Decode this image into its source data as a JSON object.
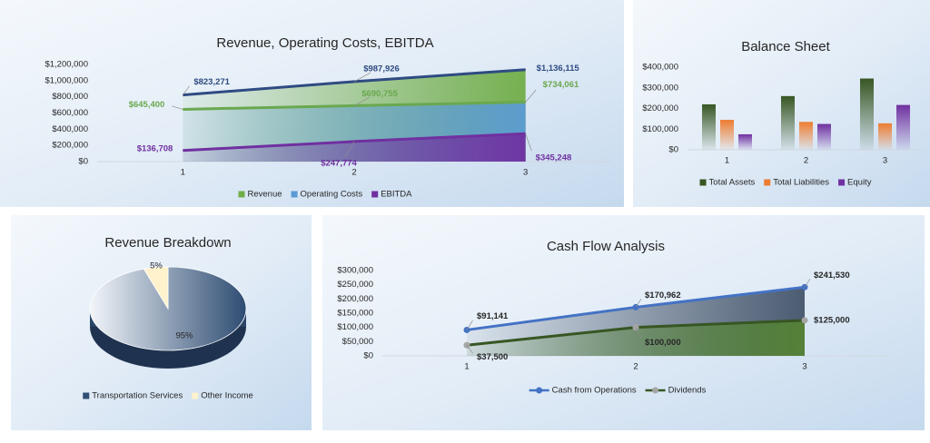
{
  "chart_data": [
    {
      "type": "area",
      "title": "Revenue, Operating Costs, EBITDA",
      "categories": [
        "1",
        "2",
        "3"
      ],
      "series": [
        {
          "name": "Revenue",
          "color": "#70ad47",
          "line_color": "#2f4b82",
          "values": [
            823271,
            987926,
            1136115
          ],
          "value_labels": [
            "$823,271",
            "$987,926",
            "$1,136,115"
          ]
        },
        {
          "name": "Operating Costs",
          "color": "#5b9bd5",
          "line_color": "#6aa84f",
          "values": [
            645400,
            690755,
            734061
          ],
          "value_labels": [
            "$645,400",
            "$690,755",
            "$734,061"
          ]
        },
        {
          "name": "EBITDA",
          "color": "#7030a0",
          "line_color": "#7030a0",
          "values": [
            136708,
            247774,
            345248
          ],
          "value_labels": [
            "$136,708",
            "$247,774",
            "$345,248"
          ]
        }
      ],
      "ylim": [
        0,
        1200000
      ],
      "yticks": [
        {
          "value": 0,
          "label": "$0"
        },
        {
          "value": 200000,
          "label": "$200,000"
        },
        {
          "value": 400000,
          "label": "$400,000"
        },
        {
          "value": 600000,
          "label": "$600,000"
        },
        {
          "value": 800000,
          "label": "$800,000"
        },
        {
          "value": 1000000,
          "label": "$1,000,000"
        },
        {
          "value": 1200000,
          "label": "$1,200,000"
        }
      ],
      "legend": "bottom"
    },
    {
      "type": "bar",
      "title": "Balance Sheet",
      "categories": [
        "1",
        "2",
        "3"
      ],
      "series": [
        {
          "name": "Total Assets",
          "color": "#375623",
          "values": [
            220000,
            260000,
            345000
          ]
        },
        {
          "name": "Total Liabilities",
          "color": "#ed7d31",
          "values": [
            145000,
            135000,
            128000
          ]
        },
        {
          "name": "Equity",
          "color": "#7030a0",
          "values": [
            75000,
            125000,
            217000
          ]
        }
      ],
      "ylim": [
        0,
        400000
      ],
      "yticks": [
        {
          "value": 0,
          "label": "$0"
        },
        {
          "value": 100000,
          "label": "$100,000"
        },
        {
          "value": 200000,
          "label": "$200,000"
        },
        {
          "value": 300000,
          "label": "$300,000"
        },
        {
          "value": 400000,
          "label": "$400,000"
        }
      ],
      "legend": "bottom"
    },
    {
      "type": "pie",
      "title": "Revenue Breakdown",
      "categories": [
        "Transportation Services",
        "Other Income"
      ],
      "values": [
        95,
        5
      ],
      "value_labels": [
        "95%",
        "5%"
      ],
      "colors": [
        "#2e4d73",
        "#fff2cc"
      ],
      "legend": "bottom"
    },
    {
      "type": "area",
      "title": "Cash Flow Analysis",
      "categories": [
        "1",
        "2",
        "3"
      ],
      "markers": true,
      "label_color": "#262626",
      "series": [
        {
          "name": "Cash from Operations",
          "color": "#44546a",
          "line_color": "#4472c4",
          "marker_color": "#4472c4",
          "values": [
            91141,
            170962,
            241530
          ],
          "value_labels": [
            "$91,141",
            "$170,962",
            "$241,530"
          ]
        },
        {
          "name": "Dividends",
          "color": "#548235",
          "line_color": "#375623",
          "marker_color": "#a5a5a5",
          "values": [
            37500,
            100000,
            125000
          ],
          "value_labels": [
            "$37,500",
            "$100,000",
            "$125,000"
          ]
        }
      ],
      "ylim": [
        0,
        300000
      ],
      "yticks": [
        {
          "value": 0,
          "label": "$0"
        },
        {
          "value": 50000,
          "label": "$50,000"
        },
        {
          "value": 100000,
          "label": "$100,000"
        },
        {
          "value": 150000,
          "label": "$150,000"
        },
        {
          "value": 200000,
          "label": "$200,000"
        },
        {
          "value": 250000,
          "label": "$250,000"
        },
        {
          "value": 300000,
          "label": "$300,000"
        }
      ],
      "legend": "bottom"
    }
  ]
}
